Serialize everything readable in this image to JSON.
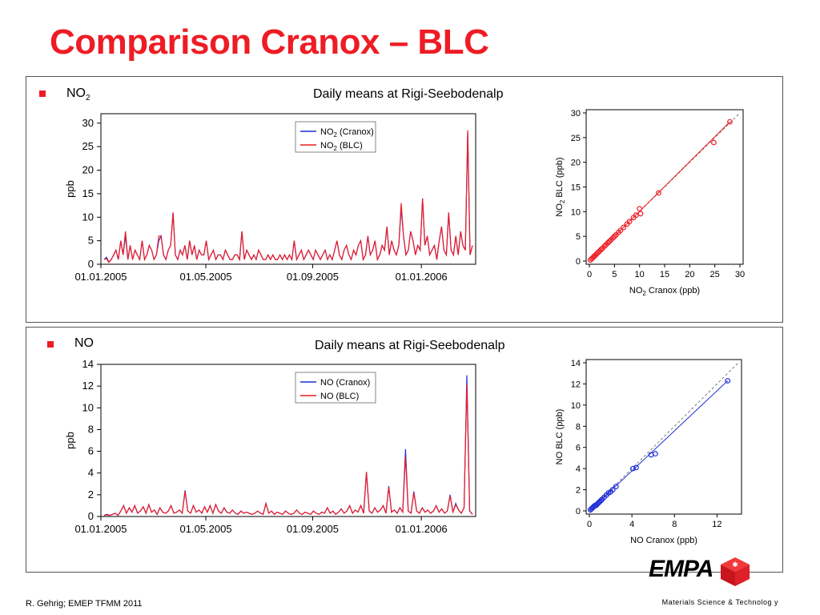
{
  "title": "Comparison Cranox – BLC",
  "footer_left": "R. Gehrig; EMEP TFMM 2011",
  "footer_right": "Materials Science & Technolog y",
  "logo_text": "EMPA",
  "colors": {
    "accent": "#ee1c24",
    "cranox": "#1f2fd6",
    "blc": "#ee1c24"
  },
  "sections": [
    {
      "label": "NO",
      "label_sub": "2",
      "subtitle": "Daily means at Rigi-Seebodenalp",
      "time_chart": {
        "ylabel": "ppb",
        "yticks": [
          "0",
          "5",
          "10",
          "15",
          "20",
          "25",
          "30"
        ],
        "xticks": [
          "01.01.2005",
          "01.05.2005",
          "01.09.2005",
          "01.01.2006"
        ],
        "legend": [
          "NO2 (Cranox)",
          "NO2 (BLC)"
        ]
      },
      "scatter": {
        "xlabel": "NO2 Cranox (ppb)",
        "ylabel": "NO2 BLC (ppb)",
        "ticks": [
          "0",
          "5",
          "10",
          "15",
          "20",
          "25",
          "30"
        ]
      }
    },
    {
      "label": "NO",
      "subtitle": "Daily means at Rigi-Seebodenalp",
      "time_chart": {
        "ylabel": "ppb",
        "yticks": [
          "0",
          "2",
          "4",
          "6",
          "8",
          "10",
          "12",
          "14"
        ],
        "xticks": [
          "01.01.2005",
          "01.05.2005",
          "01.09.2005",
          "01.01.2006"
        ],
        "legend": [
          "NO (Cranox)",
          "NO (BLC)"
        ]
      },
      "scatter": {
        "xlabel": "NO Cranox (ppb)",
        "ylabel": "NO BLC (ppb)",
        "xticks": [
          "0",
          "4",
          "8",
          "12"
        ],
        "yticks": [
          "0",
          "2",
          "4",
          "6",
          "8",
          "10",
          "12",
          "14"
        ]
      }
    }
  ],
  "chart_data": [
    {
      "type": "line",
      "xlabel": "",
      "ylabel": "ppb",
      "ylim": [
        0,
        32
      ],
      "x_range": [
        "01.01.2005",
        "01.03.2006"
      ],
      "series": [
        {
          "name": "NO2 (Cranox)",
          "values": [
            1,
            1.5,
            0.5,
            1,
            2,
            3,
            1,
            5,
            2,
            6,
            1,
            4,
            1,
            3,
            2,
            1,
            5,
            1,
            2,
            4,
            3,
            1,
            2,
            5,
            6,
            2,
            1,
            3,
            4,
            11,
            2,
            1,
            3,
            2,
            4,
            1,
            5,
            2,
            4,
            1,
            3,
            2,
            2,
            5,
            1,
            2,
            3,
            1,
            2,
            2,
            1,
            3,
            2,
            1,
            1,
            2,
            2,
            1,
            7,
            1,
            3,
            2,
            1,
            2,
            1,
            3,
            2,
            1,
            1,
            2,
            1,
            2,
            1,
            1,
            2,
            1,
            2,
            1,
            2,
            1,
            5,
            1,
            2,
            3,
            1,
            2,
            3,
            2,
            1,
            3,
            2,
            1,
            2,
            3,
            1,
            2,
            1,
            3,
            5,
            2,
            1,
            3,
            4,
            2,
            1,
            3,
            2,
            4,
            5,
            1,
            2,
            6,
            2,
            3,
            5,
            1,
            2,
            4,
            3,
            8,
            2,
            5,
            3,
            2,
            4,
            12,
            6,
            2,
            3,
            7,
            5,
            2,
            4,
            3,
            14,
            4,
            6,
            2,
            3,
            4,
            1,
            5,
            8,
            3,
            2,
            11,
            3,
            2,
            6,
            2,
            7,
            4,
            3,
            28,
            2,
            4
          ]
        },
        {
          "name": "NO2 (BLC)",
          "values": [
            1,
            1.2,
            0.4,
            1,
            2,
            3,
            1,
            5,
            2,
            7,
            1,
            4,
            1,
            3,
            2,
            1,
            5,
            1,
            2,
            4,
            3,
            1,
            2,
            6,
            6,
            2,
            1,
            3,
            4,
            11,
            2,
            1,
            3,
            2,
            4,
            1,
            5,
            2,
            4,
            1,
            3,
            2,
            2,
            5,
            1,
            2,
            3,
            1,
            2,
            2,
            1,
            3,
            2,
            1,
            1,
            2,
            2,
            1,
            7,
            1,
            3,
            2,
            1,
            2,
            1,
            3,
            2,
            1,
            1,
            2,
            1,
            2,
            1,
            1,
            2,
            1,
            2,
            1,
            2,
            1,
            5,
            1,
            2,
            3,
            1,
            2,
            3,
            2,
            1,
            3,
            2,
            1,
            2,
            3,
            1,
            2,
            1,
            3,
            5,
            2,
            1,
            3,
            4,
            2,
            1,
            3,
            2,
            4,
            5,
            1,
            2,
            6,
            2,
            3,
            5,
            1,
            2,
            4,
            3,
            8,
            2,
            5,
            3,
            2,
            4,
            13,
            6,
            2,
            3,
            7,
            5,
            2,
            4,
            3,
            14,
            4,
            6,
            2,
            3,
            4,
            1,
            5,
            8,
            3,
            2,
            11,
            3,
            2,
            6,
            2,
            7,
            4,
            3,
            28.5,
            2,
            4
          ]
        }
      ]
    },
    {
      "type": "scatter",
      "xlabel": "NO2 Cranox (ppb)",
      "ylabel": "NO2 BLC (ppb)",
      "xlim": [
        0,
        30
      ],
      "ylim": [
        0,
        30
      ],
      "x": [
        0.2,
        0.5,
        0.8,
        1,
        1.2,
        1.5,
        1.8,
        2,
        2.3,
        2.6,
        3,
        3.3,
        3.7,
        4,
        4.3,
        4.7,
        5,
        5.3,
        5.8,
        6.2,
        6.8,
        7.5,
        8,
        8.8,
        9.3,
        10,
        10.2,
        13.8,
        24.8,
        28
      ],
      "y": [
        0.2,
        0.5,
        0.8,
        1,
        1.2,
        1.5,
        1.8,
        2,
        2.3,
        2.6,
        3,
        3.3,
        3.7,
        4,
        4.3,
        4.7,
        5,
        5.3,
        5.8,
        6.2,
        6.8,
        7.5,
        8,
        8.8,
        9.3,
        10.6,
        9.6,
        13.8,
        24,
        28.2
      ]
    },
    {
      "type": "line",
      "xlabel": "",
      "ylabel": "ppb",
      "ylim": [
        0,
        14
      ],
      "x_range": [
        "01.01.2005",
        "01.03.2006"
      ],
      "series": [
        {
          "name": "NO (Cranox)",
          "values": [
            0.1,
            0.2,
            0.1,
            0.2,
            0.3,
            0.1,
            0.5,
            1,
            0.3,
            0.8,
            0.4,
            1,
            0.3,
            0.5,
            0.9,
            0.3,
            1.1,
            0.4,
            0.6,
            0.2,
            0.8,
            0.4,
            0.3,
            0.5,
            1,
            0.3,
            0.4,
            0.6,
            0.3,
            2.4,
            0.5,
            0.3,
            1,
            0.4,
            0.6,
            0.3,
            0.9,
            0.4,
            1,
            0.3,
            1.1,
            0.5,
            0.3,
            0.8,
            0.4,
            0.3,
            0.6,
            0.3,
            0.2,
            0.5,
            0.3,
            0.4,
            0.3,
            0.2,
            0.3,
            0.5,
            0.3,
            0.2,
            1.2,
            0.3,
            0.5,
            0.2,
            0.4,
            0.3,
            0.2,
            0.5,
            0.3,
            0.2,
            0.3,
            0.6,
            0.3,
            0.2,
            0.4,
            0.3,
            0.2,
            0.5,
            0.3,
            0.2,
            0.4,
            0.3,
            0.8,
            0.3,
            0.5,
            0.2,
            0.4,
            0.7,
            0.3,
            0.5,
            1,
            0.3,
            0.6,
            0.4,
            1,
            0.3,
            4.1,
            0.5,
            0.3,
            0.8,
            0.4,
            0.6,
            1,
            0.3,
            2.8,
            0.4,
            0.6,
            0.3,
            0.8,
            0.4,
            6.2,
            0.5,
            0.3,
            2.3,
            0.5,
            0.3,
            0.8,
            0.4,
            0.6,
            0.3,
            0.5,
            1,
            0.4,
            0.7,
            0.3,
            0.5,
            2,
            0.4,
            1.2,
            0.6,
            0.3,
            0.8,
            13,
            0.5,
            0.2
          ]
        },
        {
          "name": "NO (BLC)",
          "values": [
            0.1,
            0.15,
            0.1,
            0.2,
            0.3,
            0.1,
            0.5,
            1,
            0.3,
            0.8,
            0.4,
            1,
            0.3,
            0.5,
            0.9,
            0.3,
            1.1,
            0.4,
            0.6,
            0.2,
            0.8,
            0.4,
            0.3,
            0.5,
            1,
            0.3,
            0.4,
            0.6,
            0.3,
            2.3,
            0.5,
            0.3,
            1,
            0.4,
            0.6,
            0.3,
            0.9,
            0.4,
            1,
            0.3,
            1.1,
            0.5,
            0.3,
            0.8,
            0.4,
            0.3,
            0.6,
            0.3,
            0.2,
            0.5,
            0.3,
            0.4,
            0.3,
            0.2,
            0.3,
            0.5,
            0.3,
            0.2,
            1.2,
            0.3,
            0.5,
            0.2,
            0.4,
            0.3,
            0.2,
            0.5,
            0.3,
            0.2,
            0.3,
            0.6,
            0.3,
            0.2,
            0.4,
            0.3,
            0.2,
            0.5,
            0.3,
            0.2,
            0.4,
            0.3,
            0.8,
            0.3,
            0.5,
            0.2,
            0.4,
            0.7,
            0.3,
            0.5,
            1,
            0.3,
            0.6,
            0.4,
            1,
            0.3,
            4.1,
            0.5,
            0.3,
            0.8,
            0.4,
            0.6,
            1,
            0.3,
            2.7,
            0.4,
            0.6,
            0.3,
            0.8,
            0.4,
            5.5,
            0.5,
            0.3,
            2.2,
            0.5,
            0.3,
            0.8,
            0.4,
            0.6,
            0.3,
            0.5,
            1,
            0.4,
            0.7,
            0.3,
            0.5,
            1.9,
            0.4,
            1.1,
            0.6,
            0.3,
            0.8,
            12.2,
            0.5,
            0.2
          ]
        }
      ]
    },
    {
      "type": "scatter",
      "xlabel": "NO Cranox (ppb)",
      "ylabel": "NO BLC (ppb)",
      "xlim": [
        0,
        14
      ],
      "ylim": [
        0,
        14
      ],
      "x": [
        0.1,
        0.2,
        0.3,
        0.4,
        0.5,
        0.6,
        0.7,
        0.8,
        0.9,
        1,
        1.1,
        1.2,
        1.4,
        1.6,
        1.8,
        2,
        2.2,
        2.5,
        4.1,
        4.4,
        5.8,
        6.2,
        13
      ],
      "y": [
        0.1,
        0.2,
        0.3,
        0.4,
        0.5,
        0.5,
        0.6,
        0.7,
        0.8,
        0.9,
        1,
        1.1,
        1.3,
        1.5,
        1.7,
        1.8,
        2,
        2.3,
        4,
        4.1,
        5.3,
        5.4,
        12.3
      ]
    }
  ]
}
